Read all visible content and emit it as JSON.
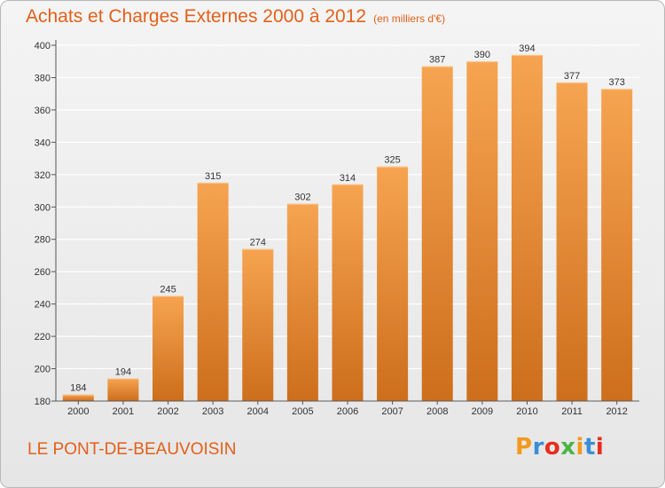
{
  "header": {
    "title": "Achats et Charges Externes 2000 à 2012",
    "unit": "(en milliers d'€)"
  },
  "footer": {
    "commune": "LE PONT-DE-BEAUVOISIN",
    "logo_text": "Proxiti",
    "logo_colors": [
      "#f29a1d",
      "#3a8fd6",
      "#e52e1f",
      "#4bb543",
      "#f29a1d",
      "#3a8fd6",
      "#e52e1f"
    ]
  },
  "colors": {
    "bar_top": "#f6a451",
    "bar_bottom": "#cd6e1c",
    "title": "#e3601a",
    "grid": "#ffffff"
  },
  "chart_data": {
    "type": "bar",
    "categories": [
      "2000",
      "2001",
      "2002",
      "2003",
      "2004",
      "2005",
      "2006",
      "2007",
      "2008",
      "2009",
      "2010",
      "2011",
      "2012"
    ],
    "values": [
      184,
      194,
      245,
      315,
      274,
      302,
      314,
      325,
      387,
      390,
      394,
      377,
      373
    ],
    "ylim": [
      180,
      400
    ],
    "yticks": [
      180,
      200,
      220,
      240,
      260,
      280,
      300,
      320,
      340,
      360,
      380,
      400
    ],
    "grid": true,
    "title": "Achats et Charges Externes 2000 à 2012",
    "xlabel": "",
    "ylabel": ""
  }
}
